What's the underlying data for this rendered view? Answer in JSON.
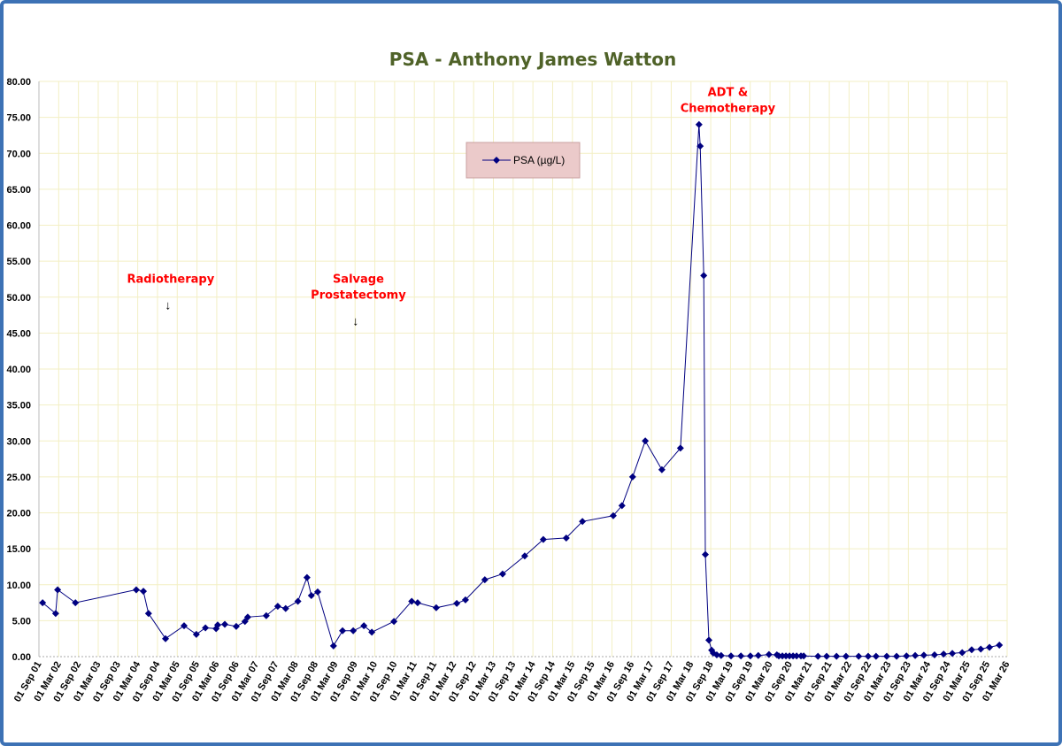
{
  "chart_data": {
    "type": "line",
    "title": "PSA - Anthony James Watton",
    "xlabel": "",
    "ylabel": "",
    "ylim": [
      0,
      80
    ],
    "y_ticks": [
      "0.00",
      "5.00",
      "10.00",
      "15.00",
      "20.00",
      "25.00",
      "30.00",
      "35.00",
      "40.00",
      "45.00",
      "50.00",
      "55.00",
      "60.00",
      "65.00",
      "70.00",
      "75.00",
      "80.00"
    ],
    "xlim": [
      2001.667,
      2026.167
    ],
    "x_tick_labels": [
      "01 Sep 01",
      "01 Mar 02",
      "01 Sep 02",
      "01 Mar 03",
      "01 Sep 03",
      "01 Mar 04",
      "01 Sep 04",
      "01 Mar 05",
      "01 Sep 05",
      "01 Mar 06",
      "01 Sep 06",
      "01 Mar 07",
      "01 Sep 07",
      "01 Mar 08",
      "01 Sep 08",
      "01 Mar 09",
      "01 Sep 09",
      "01 Mar 10",
      "01 Sep 10",
      "01 Mar 11",
      "01 Sep 11",
      "01 Mar 12",
      "01 Sep 12",
      "01 Mar 13",
      "01 Sep 13",
      "01 Mar 14",
      "01 Sep 14",
      "01 Mar 15",
      "01 Sep 15",
      "01 Mar 16",
      "01 Sep 16",
      "01 Mar 17",
      "01 Sep 17",
      "01 Mar 18",
      "01 Sep 18",
      "01 Mar 19",
      "01 Sep 19",
      "01 Mar 20",
      "01 Sep 20",
      "01 Mar 21",
      "01 Sep 21",
      "01 Mar 22",
      "01 Sep 22",
      "01 Mar 23",
      "01 Sep 23",
      "01 Mar 24",
      "01 Sep 24",
      "01 Mar 25",
      "01 Sep 25",
      "01 Mar 26"
    ],
    "grid": true,
    "legend": {
      "position": "top-center",
      "label": "PSA (µg/L)"
    },
    "series": [
      {
        "name": "PSA (µg/L)",
        "color": "#000080",
        "x": [
          2001.76,
          2002.09,
          2002.14,
          2002.59,
          2004.13,
          2004.31,
          2004.44,
          2004.87,
          2005.34,
          2005.65,
          2005.88,
          2006.15,
          2006.19,
          2006.37,
          2006.66,
          2006.88,
          2006.95,
          2007.42,
          2007.71,
          2007.91,
          2008.22,
          2008.45,
          2008.56,
          2008.72,
          2009.12,
          2009.35,
          2009.62,
          2009.89,
          2010.09,
          2010.65,
          2011.1,
          2011.25,
          2011.72,
          2012.24,
          2012.46,
          2012.95,
          2013.4,
          2013.96,
          2014.43,
          2015.01,
          2015.42,
          2016.2,
          2016.42,
          2016.69,
          2017.01,
          2017.43,
          2017.9,
          2018.37,
          2018.4,
          2018.49,
          2018.53,
          2018.62,
          2018.69,
          2018.73,
          2018.82,
          2018.93,
          2019.18,
          2019.43,
          2019.67,
          2019.87,
          2020.14,
          2020.34,
          2020.39,
          2020.48,
          2020.57,
          2020.66,
          2020.75,
          2020.84,
          2020.95,
          2021.02,
          2021.38,
          2021.6,
          2021.85,
          2022.09,
          2022.41,
          2022.65,
          2022.85,
          2023.12,
          2023.37,
          2023.62,
          2023.84,
          2024.06,
          2024.33,
          2024.56,
          2024.78,
          2025.03,
          2025.27,
          2025.5,
          2025.72,
          2025.97
        ],
        "values": [
          7.5,
          6.0,
          9.3,
          7.5,
          9.3,
          9.1,
          6.0,
          2.5,
          4.3,
          3.1,
          4.0,
          3.9,
          4.4,
          4.5,
          4.2,
          4.9,
          5.5,
          5.7,
          7.0,
          6.7,
          7.7,
          11.0,
          8.5,
          9.0,
          1.5,
          3.6,
          3.6,
          4.3,
          3.4,
          4.9,
          7.7,
          7.5,
          6.8,
          7.4,
          7.9,
          10.7,
          11.5,
          14.0,
          16.3,
          16.5,
          18.8,
          19.6,
          21.0,
          25.0,
          30.0,
          26.0,
          29.0,
          74.0,
          71.0,
          53.0,
          14.2,
          2.3,
          0.9,
          0.5,
          0.25,
          0.15,
          0.1,
          0.1,
          0.1,
          0.15,
          0.3,
          0.25,
          0.1,
          0.1,
          0.1,
          0.1,
          0.1,
          0.1,
          0.1,
          0.1,
          0.05,
          0.05,
          0.05,
          0.05,
          0.05,
          0.05,
          0.05,
          0.05,
          0.05,
          0.1,
          0.15,
          0.2,
          0.25,
          0.35,
          0.45,
          0.55,
          0.95,
          1.05,
          1.3,
          1.6
        ]
      }
    ],
    "annotations": [
      {
        "lines": [
          "Radiotherapy"
        ],
        "arrow": "↓",
        "at_x": 2005.0,
        "at_y": 52
      },
      {
        "lines": [
          "Salvage",
          "Prostatectomy"
        ],
        "arrow": "↓",
        "at_x": 2009.75,
        "at_y": 52
      },
      {
        "lines": [
          "ADT &",
          "Chemotherapy"
        ],
        "arrow": "",
        "at_x": 2019.1,
        "at_y": 78
      }
    ]
  }
}
